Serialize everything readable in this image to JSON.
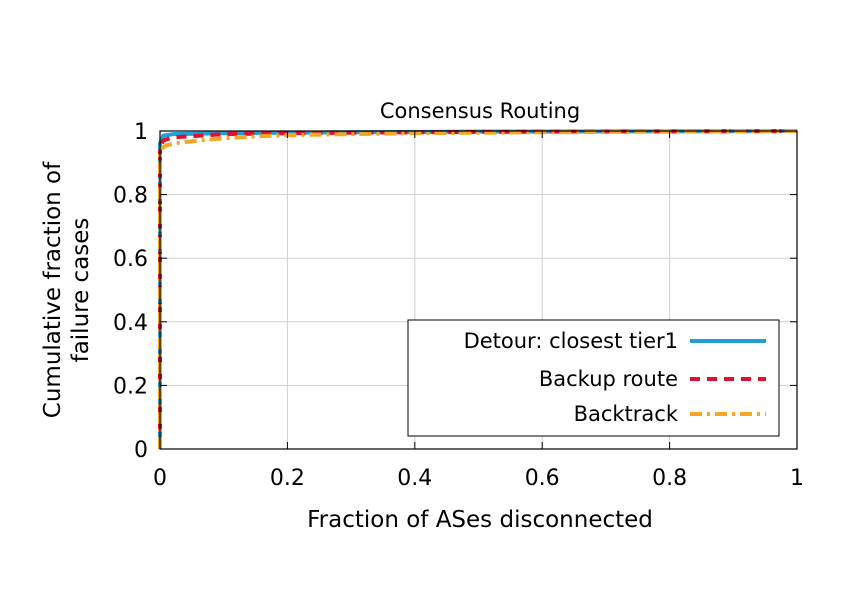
{
  "chart_data": {
    "type": "line",
    "title": "Consensus Routing",
    "xlabel": "Fraction of ASes disconnected",
    "ylabel_lines": [
      "Cumulative fraction of",
      "failure cases"
    ],
    "xlim": [
      0,
      1
    ],
    "ylim": [
      0,
      1
    ],
    "xticks": [
      0,
      0.2,
      0.4,
      0.6,
      0.8,
      1
    ],
    "xtick_labels": [
      "0",
      "0.2",
      "0.4",
      "0.6",
      "0.8",
      "1"
    ],
    "yticks": [
      0,
      0.2,
      0.4,
      0.6,
      0.8,
      1
    ],
    "ytick_labels": [
      "0",
      "0.2",
      "0.4",
      "0.6",
      "0.8",
      "1"
    ],
    "grid": true,
    "legend_position": "bottom-right",
    "series": [
      {
        "name": "Detour: closest tier1",
        "color": "#1f9fd6",
        "dash": "solid",
        "x": [
          0,
          0,
          0,
          0.005,
          0.02,
          0.1,
          0.3,
          0.5,
          0.8,
          1.0
        ],
        "y": [
          0,
          0.6,
          0.96,
          0.985,
          0.99,
          0.993,
          0.996,
          0.998,
          0.999,
          1.0
        ]
      },
      {
        "name": "Backup route",
        "color": "#e0102f",
        "dash": "dashed",
        "x": [
          0,
          0,
          0,
          0.005,
          0.02,
          0.06,
          0.1,
          0.2,
          0.4,
          0.6,
          0.8,
          1.0
        ],
        "y": [
          0,
          0.6,
          0.95,
          0.97,
          0.98,
          0.985,
          0.99,
          0.993,
          0.996,
          0.998,
          0.999,
          1.0
        ]
      },
      {
        "name": "Backtrack",
        "color": "#f5a623",
        "dash": "dashdot",
        "x": [
          0,
          0,
          0,
          0.003,
          0.01,
          0.03,
          0.06,
          0.1,
          0.15,
          0.2,
          0.3,
          0.4,
          0.6,
          0.8,
          0.9,
          1.0
        ],
        "y": [
          0,
          0.5,
          0.93,
          0.945,
          0.955,
          0.963,
          0.97,
          0.977,
          0.983,
          0.987,
          0.99,
          0.993,
          0.996,
          0.998,
          1.0,
          1.0
        ]
      }
    ]
  }
}
